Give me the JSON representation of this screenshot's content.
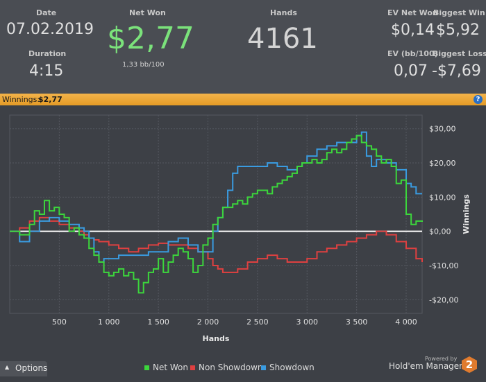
{
  "stats": {
    "date": {
      "label": "Date",
      "value": "07.02.2019"
    },
    "duration": {
      "label": "Duration",
      "value": "4:15"
    },
    "net_won": {
      "label": "Net Won",
      "value": "$2,77",
      "sub": "1,33 bb/100"
    },
    "hands": {
      "label": "Hands",
      "value": "4161"
    },
    "ev_net_won": {
      "label": "EV Net Won",
      "value": "$0,14"
    },
    "biggest_win": {
      "label": "Biggest Win",
      "value": "$5,92"
    },
    "ev_bb100": {
      "label": "EV (bb/100)",
      "value": "0,07"
    },
    "biggest_loss": {
      "label": "Biggest Loss",
      "value": "-$7,69"
    }
  },
  "banner": {
    "label": "Winnings:",
    "value": "$2,77"
  },
  "help_icon": "?",
  "footer": {
    "options_icon": "▲",
    "options_label": "Options",
    "powered_by": "Powered by",
    "brand": "Hold'em Manager",
    "brand_logo": "2"
  },
  "colors": {
    "net_won": "#3cd63c",
    "non_showdown": "#e04040",
    "showdown": "#3a9be0",
    "accent": "#f0a93a"
  },
  "chart_data": {
    "type": "line",
    "xlabel": "Hands",
    "ylabel": "Winnings",
    "xlim": [
      0,
      4161
    ],
    "ylim": [
      -24,
      34
    ],
    "x_ticks": [
      500,
      1000,
      1500,
      2000,
      2500,
      3000,
      3500,
      4000
    ],
    "x_tick_labels": [
      "500",
      "1 000",
      "1 500",
      "2 000",
      "2 500",
      "3 000",
      "3 500",
      "4 000"
    ],
    "y_ticks": [
      30,
      20,
      10,
      0,
      -10,
      -20
    ],
    "y_tick_labels": [
      "$30,00",
      "$20,00",
      "$10,00",
      "$0,00",
      "-$10,00",
      "-$20,00"
    ],
    "grid": true,
    "legend": "bottom",
    "series": [
      {
        "name": "Net Won",
        "x": [
          0,
          100,
          200,
          250,
          300,
          350,
          400,
          450,
          500,
          550,
          600,
          650,
          700,
          750,
          800,
          850,
          900,
          950,
          1000,
          1050,
          1100,
          1150,
          1200,
          1250,
          1300,
          1350,
          1400,
          1450,
          1500,
          1550,
          1600,
          1650,
          1700,
          1750,
          1800,
          1850,
          1900,
          1950,
          2000,
          2050,
          2100,
          2150,
          2200,
          2250,
          2300,
          2350,
          2400,
          2450,
          2500,
          2550,
          2600,
          2650,
          2700,
          2750,
          2800,
          2850,
          2900,
          2950,
          3000,
          3050,
          3100,
          3150,
          3200,
          3250,
          3300,
          3350,
          3400,
          3450,
          3500,
          3550,
          3600,
          3650,
          3700,
          3750,
          3800,
          3850,
          3900,
          3950,
          4000,
          4050,
          4100,
          4161
        ],
        "y": [
          0,
          -1,
          2,
          6,
          5,
          9,
          6,
          7,
          5,
          4,
          0,
          1,
          -1,
          -2,
          -5,
          -7,
          -9,
          -12,
          -13,
          -12,
          -11,
          -13,
          -12,
          -14,
          -18,
          -15,
          -12,
          -11,
          -8,
          -12,
          -9,
          -7,
          -5,
          -6,
          -8,
          -12,
          -10,
          -4,
          -2,
          2,
          4,
          7,
          7,
          8,
          9,
          8,
          10,
          11,
          12,
          12,
          11,
          13,
          14,
          15,
          16,
          17,
          19,
          20,
          20,
          21,
          20,
          21,
          23,
          24,
          23,
          24,
          26,
          27,
          28,
          26,
          25,
          24,
          22,
          20,
          21,
          19,
          14,
          15,
          5,
          2,
          3,
          2.77
        ]
      },
      {
        "name": "Non Showdown",
        "x": [
          0,
          100,
          200,
          300,
          400,
          500,
          600,
          700,
          750,
          800,
          850,
          900,
          950,
          1000,
          1100,
          1200,
          1300,
          1400,
          1500,
          1600,
          1700,
          1800,
          1900,
          2000,
          2050,
          2100,
          2150,
          2200,
          2300,
          2400,
          2500,
          2600,
          2700,
          2800,
          2900,
          3000,
          3100,
          3200,
          3300,
          3400,
          3500,
          3600,
          3700,
          3800,
          3900,
          4000,
          4100,
          4161
        ],
        "y": [
          0,
          1,
          3,
          4,
          3,
          2,
          1,
          0,
          -1,
          -2,
          -2.5,
          -3,
          -3,
          -4,
          -5,
          -6,
          -5,
          -4,
          -3.5,
          -4,
          -4,
          -5,
          -6,
          -8,
          -10,
          -11,
          -12,
          -12,
          -11,
          -9,
          -8,
          -7,
          -8,
          -9,
          -9,
          -8,
          -6,
          -5,
          -4,
          -3,
          -2,
          -1,
          0,
          -1,
          -3,
          -5,
          -8,
          -9
        ]
      },
      {
        "name": "Showdown",
        "x": [
          0,
          100,
          200,
          300,
          400,
          500,
          600,
          700,
          750,
          800,
          850,
          900,
          950,
          1000,
          1100,
          1200,
          1300,
          1400,
          1500,
          1600,
          1700,
          1800,
          1900,
          1950,
          2000,
          2050,
          2100,
          2150,
          2200,
          2250,
          2300,
          2400,
          2500,
          2600,
          2700,
          2800,
          2900,
          2950,
          3000,
          3100,
          3200,
          3300,
          3400,
          3500,
          3550,
          3600,
          3650,
          3700,
          3800,
          3900,
          4000,
          4050,
          4100,
          4161
        ],
        "y": [
          0,
          -3,
          0,
          3,
          4,
          3,
          2,
          1,
          0,
          -2,
          -6,
          -9,
          -8,
          -8,
          -7,
          -7,
          -7,
          -6,
          -6,
          -3,
          -2,
          -4,
          -6,
          -6,
          -6,
          0,
          4,
          7,
          12,
          17,
          19,
          19,
          19,
          20,
          19,
          18,
          19,
          20,
          22,
          24,
          25,
          26,
          26,
          28,
          29,
          22,
          19,
          21,
          20,
          18,
          14,
          13,
          11,
          11
        ]
      }
    ]
  }
}
